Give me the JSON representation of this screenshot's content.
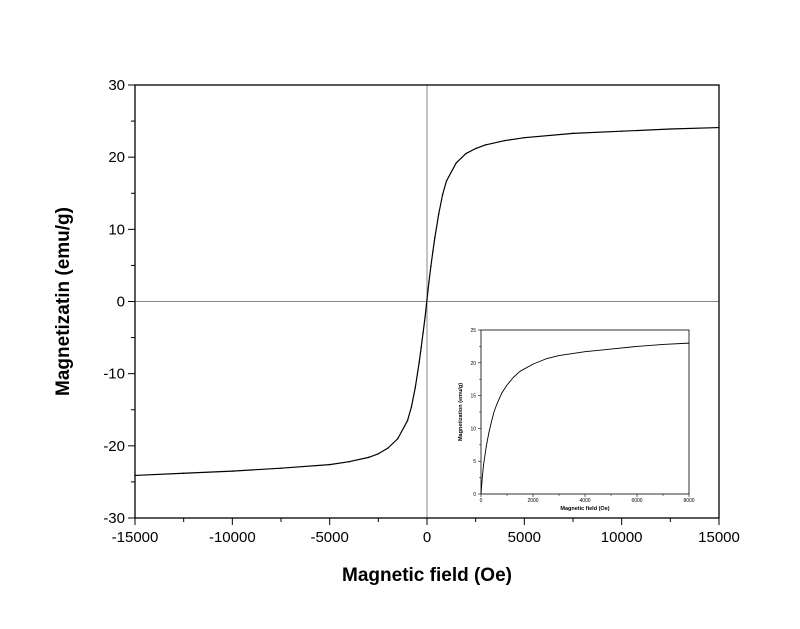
{
  "chart_data": [
    {
      "type": "line",
      "title": "",
      "xlabel": "Magnetic field (Oe)",
      "ylabel": "Magnetizatin (emu/g)",
      "xlim": [
        -15000,
        15000
      ],
      "ylim": [
        -30,
        30
      ],
      "x_ticks": [
        -15000,
        -10000,
        -5000,
        0,
        5000,
        10000,
        15000
      ],
      "y_ticks": [
        -30,
        -20,
        -10,
        0,
        10,
        20,
        30
      ],
      "x_tick_labels": [
        "-15000",
        "-10000",
        "-5000",
        "0",
        "5000",
        "10000",
        "15000"
      ],
      "y_tick_labels": [
        "-30",
        "-20",
        "-10",
        "0",
        "10",
        "20",
        "30"
      ],
      "zero_lines": true,
      "grid": false,
      "series": [
        {
          "x": [
            -15000,
            -12500,
            -10000,
            -7500,
            -5000,
            -4000,
            -3000,
            -2500,
            -2000,
            -1500,
            -1000,
            -800,
            -600,
            -400,
            -300,
            -200,
            -100,
            0,
            100,
            200,
            300,
            400,
            600,
            800,
            1000,
            1500,
            2000,
            2500,
            3000,
            4000,
            5000,
            7500,
            10000,
            12500,
            15000
          ],
          "y": [
            -24.1,
            -23.8,
            -23.5,
            -23.1,
            -22.6,
            -22.2,
            -21.6,
            -21.1,
            -20.3,
            -19.0,
            -16.5,
            -14.6,
            -11.9,
            -8.4,
            -6.4,
            -4.3,
            -2.2,
            0.3,
            2.7,
            4.9,
            6.9,
            8.8,
            12.1,
            14.8,
            16.7,
            19.2,
            20.5,
            21.2,
            21.7,
            22.3,
            22.7,
            23.3,
            23.6,
            23.9,
            24.1
          ]
        }
      ]
    },
    {
      "type": "line",
      "title": "",
      "xlabel": "Magnetic field (Oe)",
      "ylabel": "Magnetization (emu/g)",
      "xlim": [
        0,
        8000
      ],
      "ylim": [
        0,
        25
      ],
      "x_ticks": [
        0,
        2000,
        4000,
        6000,
        8000
      ],
      "y_ticks": [
        0,
        5,
        10,
        15,
        20,
        25
      ],
      "x_tick_labels": [
        "0",
        "2000",
        "4000",
        "6000",
        "8000"
      ],
      "y_tick_labels": [
        "0",
        "5",
        "10",
        "15",
        "20",
        "25"
      ],
      "grid": false,
      "series": [
        {
          "x": [
            0,
            50,
            100,
            200,
            300,
            400,
            500,
            600,
            800,
            1000,
            1250,
            1500,
            2000,
            2500,
            3000,
            4000,
            5000,
            6000,
            7000,
            8000
          ],
          "y": [
            0.0,
            2.5,
            4.5,
            7.2,
            9.3,
            11.0,
            12.5,
            13.6,
            15.4,
            16.6,
            17.8,
            18.7,
            19.8,
            20.6,
            21.1,
            21.7,
            22.1,
            22.5,
            22.8,
            23.0
          ]
        }
      ]
    }
  ]
}
